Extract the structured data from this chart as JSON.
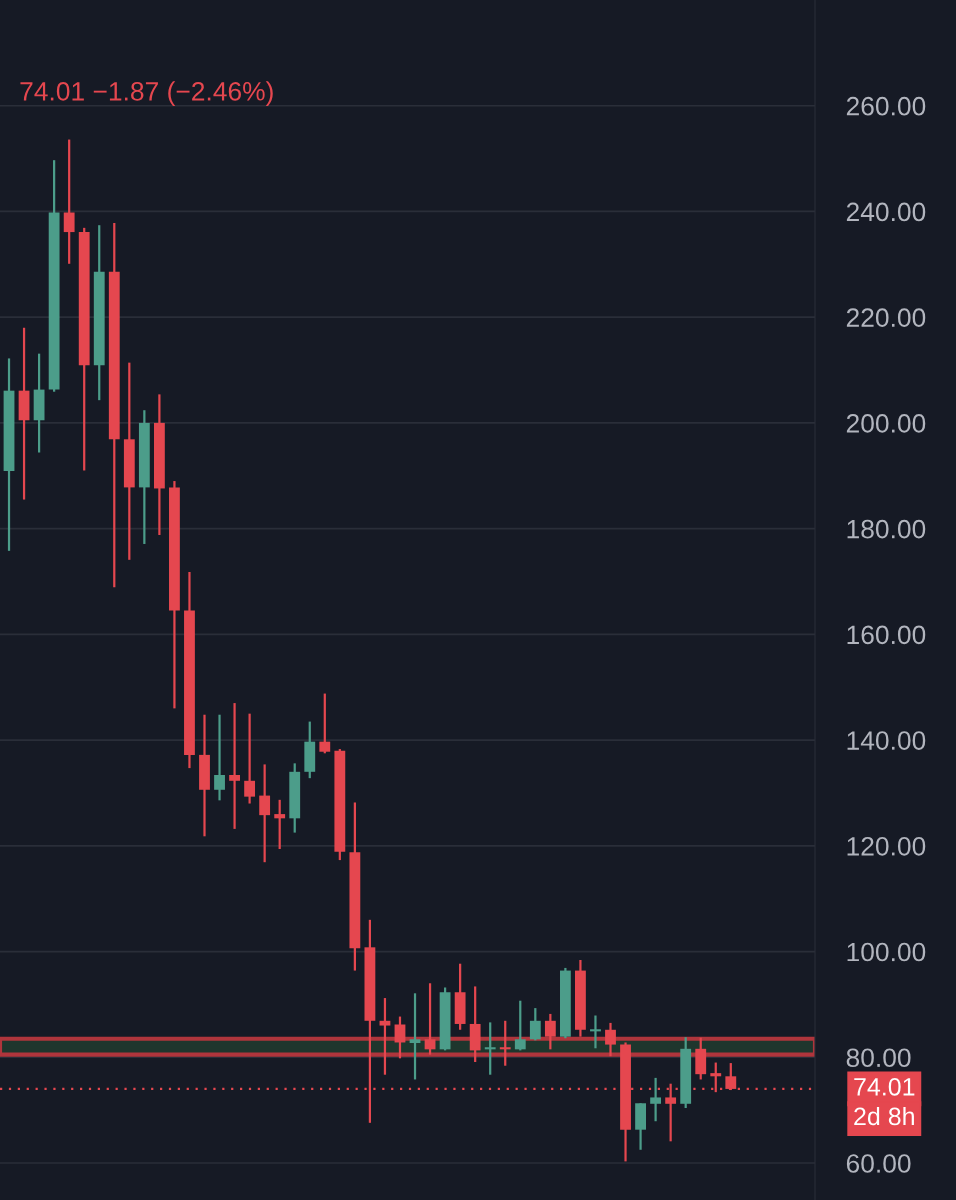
{
  "chart_data": {
    "type": "candlestick",
    "categories": [
      null,
      null,
      null,
      null,
      null,
      null,
      null,
      null,
      null,
      null,
      null,
      null,
      null,
      null,
      null,
      null,
      null,
      null,
      null,
      null,
      null,
      null,
      null,
      null,
      null,
      null,
      null,
      null,
      null,
      null,
      null,
      null,
      null,
      null,
      null,
      null,
      null,
      null,
      null,
      null,
      null,
      null,
      null,
      null,
      null,
      null,
      null,
      null,
      null
    ],
    "ohlc": [
      [
        190.9,
        212.2,
        175.8,
        206.1
      ],
      [
        206.1,
        218.0,
        185.5,
        200.5
      ],
      [
        200.5,
        213.1,
        194.4,
        206.3
      ],
      [
        206.3,
        249.7,
        205.9,
        239.8
      ],
      [
        239.8,
        253.6,
        230.1,
        236.1
      ],
      [
        236.1,
        236.9,
        191.0,
        210.9
      ],
      [
        210.9,
        237.4,
        204.3,
        228.6
      ],
      [
        228.6,
        237.8,
        168.9,
        196.9
      ],
      [
        196.9,
        211.4,
        174.1,
        187.8
      ],
      [
        187.8,
        202.4,
        177.1,
        200.0
      ],
      [
        200.0,
        205.4,
        178.8,
        187.6
      ],
      [
        187.8,
        189.0,
        146.0,
        164.5
      ],
      [
        164.5,
        171.8,
        134.7,
        137.2
      ],
      [
        137.2,
        144.8,
        121.8,
        130.6
      ],
      [
        130.6,
        144.8,
        128.6,
        133.4
      ],
      [
        133.4,
        147.0,
        123.2,
        132.3
      ],
      [
        132.3,
        145.0,
        128.0,
        129.3
      ],
      [
        129.5,
        135.4,
        116.9,
        125.8
      ],
      [
        126.0,
        128.7,
        119.4,
        125.2
      ],
      [
        125.2,
        135.6,
        122.5,
        134.0
      ],
      [
        134.0,
        143.5,
        132.8,
        139.7
      ],
      [
        139.7,
        148.8,
        137.5,
        137.8
      ],
      [
        138.0,
        138.3,
        117.3,
        118.9
      ],
      [
        118.8,
        128.2,
        96.4,
        100.6
      ],
      [
        100.8,
        106.0,
        67.6,
        86.9
      ],
      [
        86.9,
        91.2,
        76.7,
        86.0
      ],
      [
        86.2,
        87.7,
        79.8,
        82.8
      ],
      [
        82.7,
        92.1,
        75.8,
        83.4
      ],
      [
        83.4,
        94.0,
        80.5,
        81.5
      ],
      [
        81.5,
        93.2,
        81.3,
        92.3
      ],
      [
        92.3,
        97.7,
        85.2,
        86.3
      ],
      [
        86.3,
        93.4,
        79.1,
        81.3
      ],
      [
        81.5,
        86.6,
        76.7,
        81.9
      ],
      [
        81.9,
        86.9,
        78.4,
        81.5
      ],
      [
        81.5,
        90.7,
        81.3,
        83.4
      ],
      [
        83.4,
        89.3,
        83.2,
        86.9
      ],
      [
        86.9,
        88.2,
        81.5,
        83.9
      ],
      [
        83.9,
        96.9,
        83.6,
        96.4
      ],
      [
        96.4,
        98.4,
        83.9,
        85.2
      ],
      [
        84.9,
        87.9,
        81.7,
        85.2
      ],
      [
        85.2,
        86.5,
        80.2,
        82.4
      ],
      [
        82.4,
        82.8,
        60.3,
        66.3
      ],
      [
        66.3,
        71.3,
        62.5,
        71.3
      ],
      [
        71.2,
        76.1,
        67.9,
        72.4
      ],
      [
        72.4,
        75.0,
        64.1,
        71.2
      ],
      [
        71.2,
        83.8,
        70.4,
        81.6
      ],
      [
        81.6,
        83.7,
        75.8,
        76.8
      ],
      [
        77.0,
        79.0,
        73.4,
        76.4
      ],
      [
        76.4,
        78.9,
        73.8,
        74.01
      ]
    ],
    "ylim": [
      53,
      280
    ],
    "yticks": [
      {
        "value": 60,
        "label": "60.00"
      },
      {
        "value": 80,
        "label": "80.00"
      },
      {
        "value": 100,
        "label": "100.00"
      },
      {
        "value": 120,
        "label": "120.00"
      },
      {
        "value": 140,
        "label": "140.00"
      },
      {
        "value": 160,
        "label": "160.00"
      },
      {
        "value": 180,
        "label": "180.00"
      },
      {
        "value": 200,
        "label": "200.00"
      },
      {
        "value": 220,
        "label": "220.00"
      },
      {
        "value": 240,
        "label": "240.00"
      },
      {
        "value": 260,
        "label": "260.00"
      }
    ],
    "tick_labels": "y",
    "grid": "y",
    "ref_lines": [
      {
        "axis": "y",
        "value": 74.01,
        "label": "74.01",
        "color": "#e5474f",
        "line_style": "dotted"
      }
    ],
    "bands": [
      {
        "axis": "y",
        "from": 80.5,
        "to": 83.5,
        "color": "#c0393f"
      }
    ],
    "annotations": [
      "74.01 −1.87 (−2.46%)",
      "2d 8h"
    ]
  }
}
